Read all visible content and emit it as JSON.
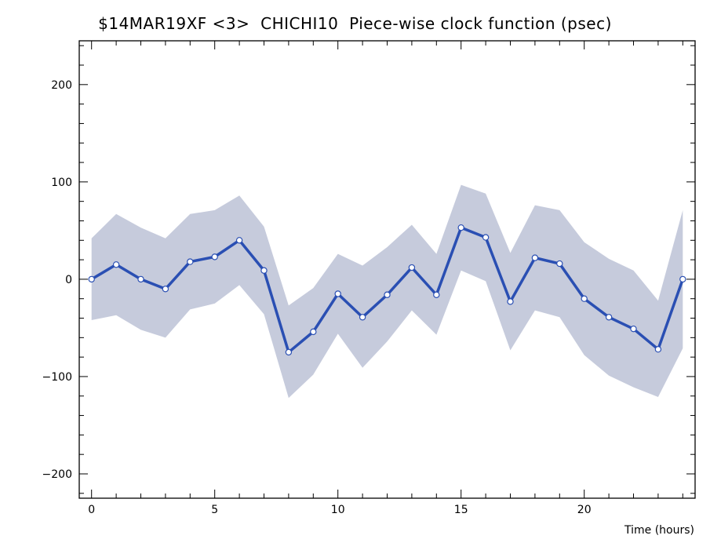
{
  "chart_data": {
    "type": "line",
    "title": "$14MAR19XF <3>  CHICHI10  Piece-wise clock function (psec)",
    "xlabel": "Time (hours)",
    "ylabel": "",
    "xlim": [
      -0.5,
      24.5
    ],
    "ylim": [
      -225,
      245
    ],
    "x_ticks": [
      0,
      5,
      10,
      15,
      20
    ],
    "y_ticks": [
      200,
      100,
      0,
      -100,
      -200
    ],
    "x": [
      0,
      1,
      2,
      3,
      4,
      5,
      6,
      7,
      8,
      9,
      10,
      11,
      12,
      13,
      14,
      15,
      16,
      17,
      18,
      19,
      20,
      21,
      22,
      23,
      24
    ],
    "series": [
      {
        "values": [
          0,
          15,
          0,
          -10,
          18,
          23,
          40,
          9,
          -75,
          -54,
          -15,
          -39,
          -16,
          12,
          -16,
          53,
          43,
          -23,
          22,
          16,
          -20,
          -39,
          -51,
          -72,
          0
        ]
      }
    ],
    "band_upper": [
      42,
      67,
      53,
      42,
      67,
      71,
      86,
      54,
      -27,
      -9,
      26,
      14,
      33,
      56,
      26,
      97,
      88,
      27,
      76,
      71,
      38,
      21,
      9,
      -22,
      71
    ],
    "band_lower": [
      -42,
      -37,
      -52,
      -60,
      -31,
      -25,
      -6,
      -36,
      -122,
      -98,
      -56,
      -91,
      -64,
      -32,
      -57,
      9,
      -2,
      -73,
      -32,
      -39,
      -78,
      -99,
      -111,
      -121,
      -71
    ],
    "grid": false,
    "colors": {
      "line": "#2a4fb3",
      "band": "#c6cbdc",
      "marker_fill": "#ffffff",
      "marker_stroke": "#2a4fb3",
      "frame": "#000000"
    }
  }
}
